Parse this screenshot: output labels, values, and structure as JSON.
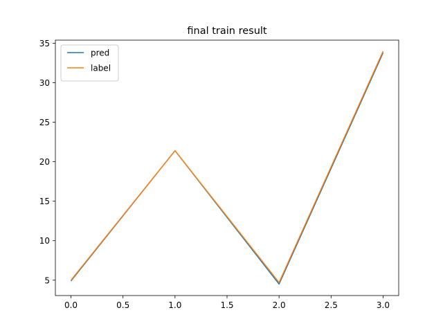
{
  "chart_data": {
    "type": "line",
    "title": "final train result",
    "xlabel": "",
    "ylabel": "",
    "xlim": [
      -0.15,
      3.15
    ],
    "ylim": [
      3.05,
      35.4
    ],
    "x_ticks": [
      0.0,
      0.5,
      1.0,
      1.5,
      2.0,
      2.5,
      3.0
    ],
    "x_tick_labels": [
      "0.0",
      "0.5",
      "1.0",
      "1.5",
      "2.0",
      "2.5",
      "3.0"
    ],
    "y_ticks": [
      5,
      10,
      15,
      20,
      25,
      30,
      35
    ],
    "y_tick_labels": [
      "5",
      "10",
      "15",
      "20",
      "25",
      "30",
      "35"
    ],
    "grid": false,
    "legend_position": "top-left",
    "series": [
      {
        "name": "pred",
        "color": "#1f77b4",
        "x": [
          0,
          1,
          2,
          3
        ],
        "values": [
          4.9,
          21.4,
          4.5,
          33.8
        ]
      },
      {
        "name": "label",
        "color": "#ff7f0e",
        "x": [
          0,
          1,
          2,
          3
        ],
        "values": [
          5.0,
          21.4,
          4.7,
          34.0
        ]
      }
    ]
  }
}
